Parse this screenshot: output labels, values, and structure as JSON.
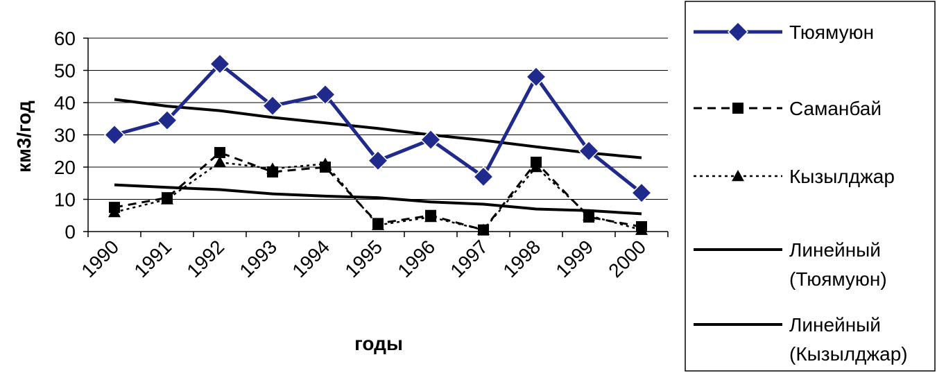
{
  "chart_data": {
    "type": "line",
    "title": "",
    "xlabel": "годы",
    "ylabel": "км3/год",
    "ylim": [
      0,
      60
    ],
    "yticks": [
      0,
      10,
      20,
      30,
      40,
      50,
      60
    ],
    "categories": [
      "1990",
      "1991",
      "1992",
      "1993",
      "1994",
      "1995",
      "1996",
      "1997",
      "1998",
      "1999",
      "2000"
    ],
    "grid": true,
    "legend_position": "right",
    "series": [
      {
        "name": "Тюямуюн",
        "style": "solid-diamond",
        "color": "#1f2a8c",
        "values": [
          30,
          34.5,
          52,
          39,
          42.5,
          22,
          28.5,
          17,
          48,
          25,
          12
        ]
      },
      {
        "name": "Саманбай",
        "style": "dashed-square",
        "color": "#000000",
        "values": [
          7.5,
          10.5,
          24.5,
          18.5,
          20,
          2.5,
          5,
          0.5,
          21.5,
          4.5,
          1.5
        ]
      },
      {
        "name": "Кызылджар",
        "style": "dotted-triangle",
        "color": "#000000",
        "values": [
          6,
          10,
          21.5,
          19.5,
          21,
          2,
          4.5,
          0.5,
          20,
          5,
          0.5
        ]
      },
      {
        "name": "Линейный (Тюямуюн)",
        "style": "trend",
        "color": "#000000",
        "values": [
          41,
          38.9,
          37.5,
          35.4,
          33.7,
          32,
          30,
          28.3,
          26.3,
          24.4,
          22.9
        ]
      },
      {
        "name": "Линейный (Кызылджар)",
        "style": "trend",
        "color": "#000000",
        "values": [
          14.5,
          13.7,
          13,
          11.7,
          11,
          10.5,
          9.2,
          8.5,
          7,
          6.5,
          5.5
        ]
      }
    ],
    "legend": [
      {
        "line1": "Тюямуюн",
        "line2": ""
      },
      {
        "line1": "Саманбай",
        "line2": ""
      },
      {
        "line1": "Кызылджар",
        "line2": ""
      },
      {
        "line1": "Линейный",
        "line2": "(Тюямуюн)"
      },
      {
        "line1": "Линейный",
        "line2": "(Кызылджар)"
      }
    ]
  }
}
